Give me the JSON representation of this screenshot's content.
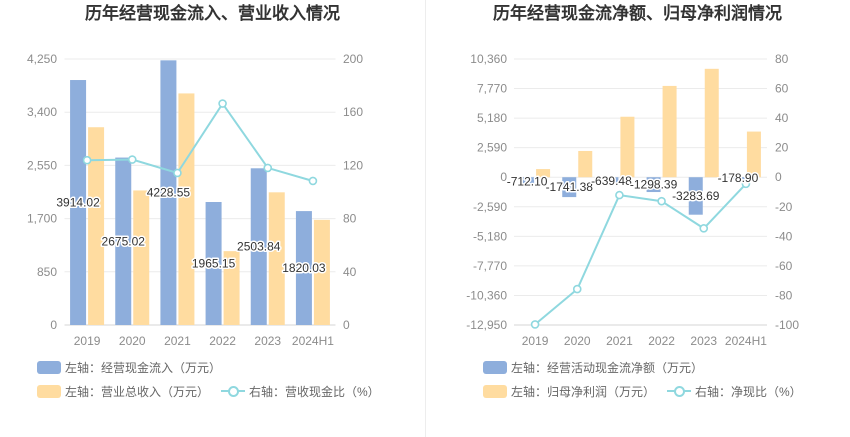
{
  "chart_data": [
    {
      "type": "bar",
      "title": "历年经营现金流入、营业收入情况",
      "categories": [
        "2019",
        "2020",
        "2021",
        "2022",
        "2023",
        "2024H1"
      ],
      "left_axis": {
        "ticks": [
          "0",
          "850",
          "1,700",
          "2,550",
          "3,400",
          "4,250"
        ],
        "range": [
          0,
          4250
        ]
      },
      "right_axis": {
        "ticks": [
          "0",
          "40",
          "80",
          "120",
          "160",
          "200"
        ],
        "range": [
          0,
          200
        ]
      },
      "grid": true,
      "legend_position": "bottom-left",
      "series": [
        {
          "legend": "左轴：经营现金流入（万元）",
          "type": "bar",
          "axis": "left",
          "color": "#8eaedc",
          "values": [
            3914.02,
            2675.02,
            4228.55,
            1965.15,
            2503.84,
            1820.03
          ],
          "labels": [
            "3914.02",
            "2675.02",
            "4228.55",
            "1965.15",
            "2503.84",
            "1820.03"
          ]
        },
        {
          "legend": "左轴：营业总收入（万元）",
          "type": "bar",
          "axis": "left",
          "color": "#ffdca0",
          "values": [
            3160,
            2150,
            3700,
            1180,
            2120,
            1680
          ]
        },
        {
          "legend": "右轴：营收现金比（%）",
          "type": "line",
          "axis": "right",
          "color": "#8fd8df",
          "values": [
            123.9,
            124.4,
            114.3,
            166.5,
            118.1,
            108.3
          ]
        }
      ]
    },
    {
      "type": "bar",
      "title": "历年经营现金流净额、归母净利润情况",
      "categories": [
        "2019",
        "2020",
        "2021",
        "2022",
        "2023",
        "2024H1"
      ],
      "left_axis": {
        "ticks": [
          "-12,950",
          "-10,360",
          "-7,770",
          "-5,180",
          "-2,590",
          "0",
          "2,590",
          "5,180",
          "7,770",
          "10,360"
        ],
        "range": [
          -12950,
          10360
        ]
      },
      "right_axis": {
        "ticks": [
          "-100",
          "-80",
          "-60",
          "-40",
          "-20",
          "0",
          "20",
          "40",
          "60",
          "80"
        ],
        "range": [
          -100,
          80
        ]
      },
      "grid": true,
      "legend_position": "bottom-left",
      "series": [
        {
          "legend": "左轴：经营活动现金流净额（万元）",
          "type": "bar",
          "axis": "left",
          "color": "#8eaedc",
          "values": [
            -712.1,
            -1741.38,
            -639.48,
            -1298.39,
            -3283.69,
            -178.9
          ],
          "labels": [
            "-712.10",
            "-1741.38",
            "-639.48",
            "-1298.39",
            "-3283.69",
            "-178.90"
          ]
        },
        {
          "legend": "左轴：归母净利润（万元）",
          "type": "bar",
          "axis": "left",
          "color": "#ffdca0",
          "values": [
            715,
            2300,
            5300,
            8000,
            9500,
            4000
          ]
        },
        {
          "legend": "右轴：净现比（%）",
          "type": "line",
          "axis": "right",
          "color": "#8fd8df",
          "values": [
            -99.6,
            -75.7,
            -12.1,
            -16.2,
            -34.6,
            -4.5
          ]
        }
      ]
    }
  ]
}
